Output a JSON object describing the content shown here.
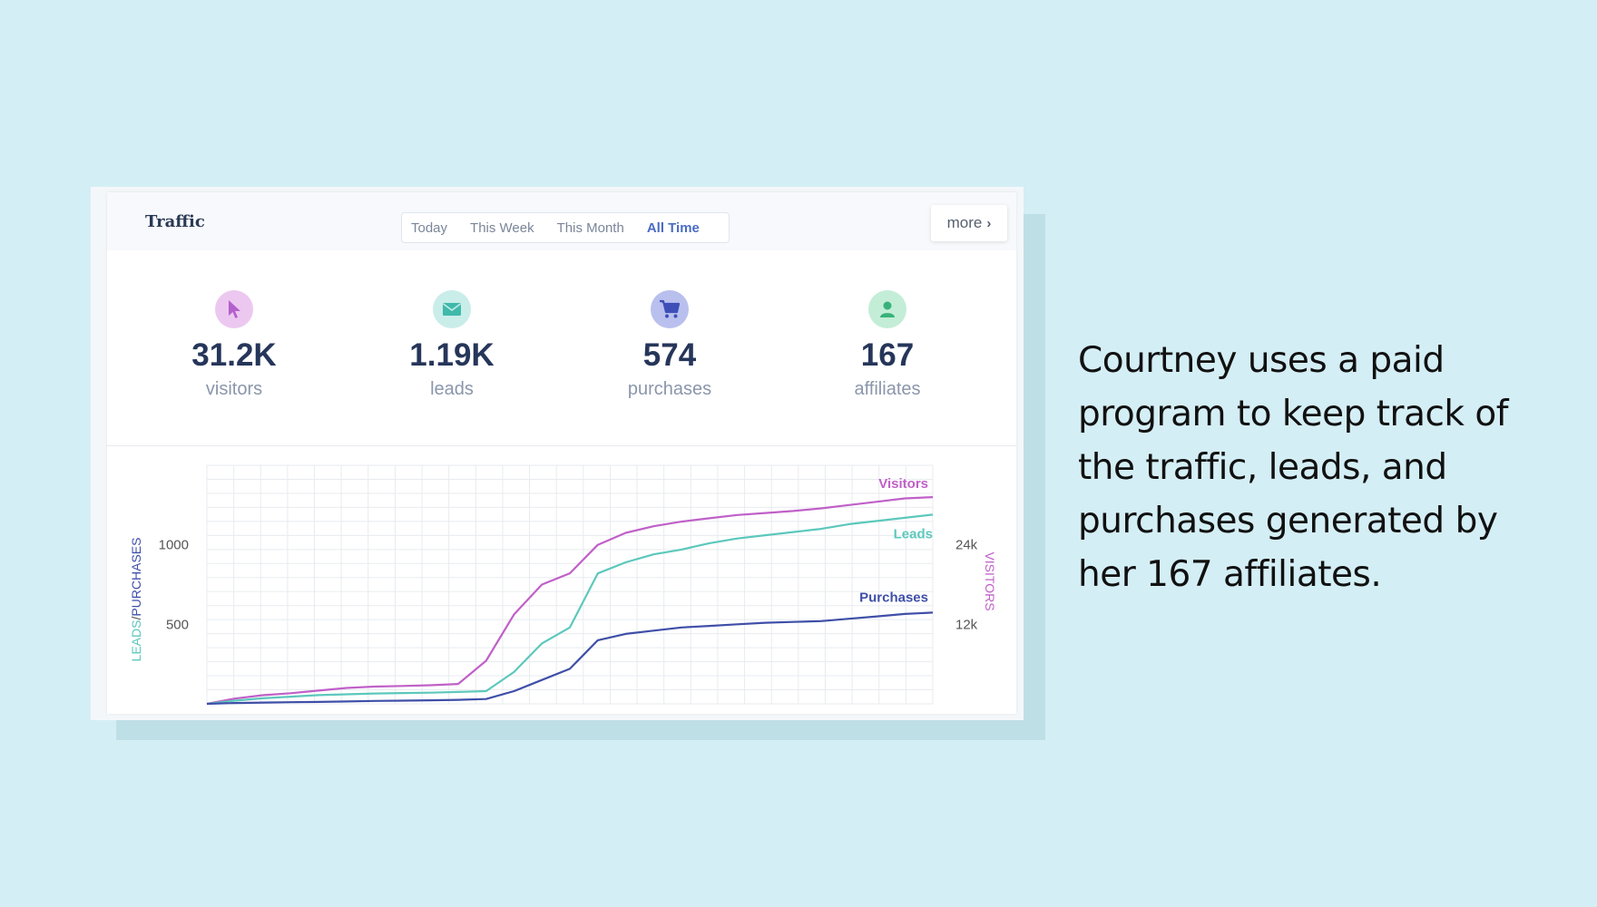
{
  "header": {
    "title": "Traffic",
    "tabs": [
      "Today",
      "This Week",
      "This Month",
      "All Time"
    ],
    "active_tab": "All Time",
    "more_label": "more"
  },
  "stats": [
    {
      "icon": "cursor-icon",
      "value": "31.2K",
      "label": "visitors",
      "color": "#e8c8ef",
      "icon_color": "#b45fce"
    },
    {
      "icon": "envelope-icon",
      "value": "1.19K",
      "label": "leads",
      "color": "#c9ede9",
      "icon_color": "#3fb9aa"
    },
    {
      "icon": "cart-icon",
      "value": "574",
      "label": "purchases",
      "color": "#b9c0ee",
      "icon_color": "#3f4fb8"
    },
    {
      "icon": "user-icon",
      "value": "167",
      "label": "affiliates",
      "color": "#c3edd7",
      "icon_color": "#38b27a"
    }
  ],
  "chart_data": {
    "type": "line",
    "x": [
      0,
      1,
      2,
      3,
      4,
      5,
      6,
      7,
      8,
      9,
      10,
      11,
      12,
      13,
      14,
      15,
      16,
      17,
      18,
      19,
      20,
      21,
      22,
      23,
      24,
      25,
      26
    ],
    "series": [
      {
        "name": "Visitors",
        "axis": "right",
        "color": "#c060c8",
        "values": [
          0,
          800,
          1300,
          1600,
          2000,
          2400,
          2600,
          2700,
          2800,
          3000,
          6500,
          13500,
          18000,
          19700,
          24000,
          25800,
          26800,
          27500,
          28000,
          28500,
          28800,
          29100,
          29500,
          30000,
          30500,
          31000,
          31200
        ]
      },
      {
        "name": "Leads",
        "axis": "left",
        "color": "#5cc8bc",
        "values": [
          0,
          20,
          35,
          45,
          55,
          60,
          65,
          68,
          70,
          75,
          80,
          200,
          380,
          480,
          820,
          890,
          940,
          970,
          1010,
          1040,
          1060,
          1080,
          1100,
          1130,
          1150,
          1170,
          1190
        ]
      },
      {
        "name": "Purchases",
        "axis": "left",
        "color": "#3f4fa8",
        "values": [
          0,
          5,
          8,
          10,
          12,
          15,
          18,
          20,
          22,
          25,
          30,
          80,
          150,
          220,
          400,
          440,
          460,
          480,
          490,
          500,
          510,
          515,
          520,
          535,
          550,
          565,
          574
        ]
      }
    ],
    "left_axis": {
      "label_leads": "LEADS",
      "label_sep": "/",
      "label_purchases": "PURCHASES",
      "ticks": [
        500,
        1000
      ],
      "tick_labels": [
        "500",
        "1000"
      ],
      "range": [
        0,
        1500
      ]
    },
    "right_axis": {
      "label": "VISITORS",
      "ticks": [
        12000,
        24000
      ],
      "tick_labels": [
        "12k",
        "24k"
      ],
      "range": [
        0,
        36000
      ]
    },
    "series_labels": [
      "Visitors",
      "Leads",
      "Purchases"
    ],
    "grid": true
  },
  "side_text": "Courtney uses a paid program to keep track of the traffic, leads, and purchases generated by her 167 affiliates."
}
